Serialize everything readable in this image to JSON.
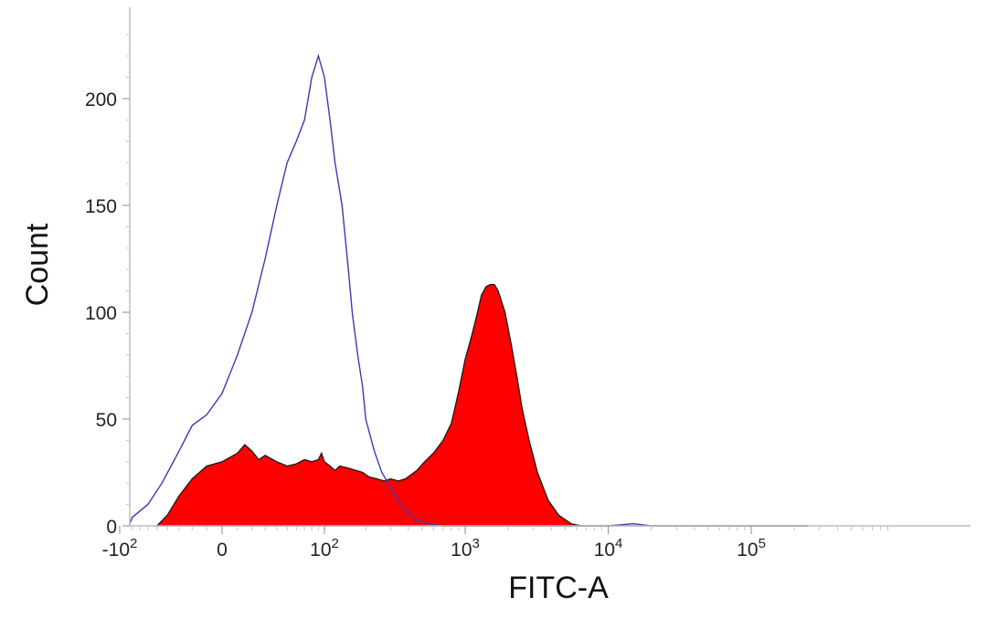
{
  "chart_data": {
    "type": "area",
    "xlabel": "FITC-A",
    "ylabel": "Count",
    "x_scale": "biexponential",
    "ylim": [
      0,
      235
    ],
    "x_ticks": [
      {
        "value": -100,
        "base": "-10",
        "exp": "2"
      },
      {
        "value": 0,
        "label": "0"
      },
      {
        "value": 100,
        "base": "10",
        "exp": "2"
      },
      {
        "value": 1000,
        "base": "10",
        "exp": "3"
      },
      {
        "value": 10000,
        "base": "10",
        "exp": "4"
      },
      {
        "value": 100000,
        "base": "10",
        "exp": "5"
      }
    ],
    "y_ticks": [
      0,
      50,
      100,
      150,
      200
    ],
    "grid": false,
    "series": [
      {
        "style": "outline",
        "color": "#3b3bb0",
        "points": [
          [
            -150,
            0
          ],
          [
            -110,
            1
          ],
          [
            -80,
            4
          ],
          [
            -60,
            10
          ],
          [
            -45,
            20
          ],
          [
            -30,
            35
          ],
          [
            -20,
            47
          ],
          [
            -10,
            52
          ],
          [
            0,
            62
          ],
          [
            10,
            80
          ],
          [
            20,
            100
          ],
          [
            30,
            125
          ],
          [
            40,
            150
          ],
          [
            50,
            170
          ],
          [
            60,
            180
          ],
          [
            70,
            190
          ],
          [
            80,
            210
          ],
          [
            90,
            220
          ],
          [
            100,
            210
          ],
          [
            110,
            190
          ],
          [
            120,
            170
          ],
          [
            135,
            150
          ],
          [
            150,
            120
          ],
          [
            160,
            100
          ],
          [
            175,
            80
          ],
          [
            190,
            65
          ],
          [
            200,
            50
          ],
          [
            230,
            35
          ],
          [
            260,
            25
          ],
          [
            300,
            18
          ],
          [
            350,
            10
          ],
          [
            400,
            6
          ],
          [
            450,
            3
          ],
          [
            550,
            1
          ],
          [
            700,
            0
          ],
          [
            1000,
            0
          ],
          [
            10000,
            0
          ],
          [
            15000,
            1
          ],
          [
            20000,
            0
          ],
          [
            250000,
            0
          ]
        ]
      },
      {
        "style": "filled",
        "color": "#ff0000",
        "points": [
          [
            -50,
            0
          ],
          [
            -40,
            5
          ],
          [
            -30,
            14
          ],
          [
            -20,
            22
          ],
          [
            -10,
            28
          ],
          [
            0,
            30
          ],
          [
            10,
            34
          ],
          [
            15,
            38
          ],
          [
            20,
            35
          ],
          [
            25,
            31
          ],
          [
            30,
            33
          ],
          [
            40,
            30
          ],
          [
            50,
            28
          ],
          [
            60,
            29
          ],
          [
            70,
            31
          ],
          [
            80,
            30
          ],
          [
            90,
            31
          ],
          [
            95,
            34
          ],
          [
            100,
            30
          ],
          [
            110,
            28
          ],
          [
            120,
            26
          ],
          [
            130,
            28
          ],
          [
            150,
            27
          ],
          [
            170,
            26
          ],
          [
            190,
            25
          ],
          [
            210,
            23
          ],
          [
            240,
            22
          ],
          [
            270,
            21
          ],
          [
            300,
            22
          ],
          [
            340,
            21
          ],
          [
            380,
            22
          ],
          [
            420,
            24
          ],
          [
            460,
            26
          ],
          [
            520,
            30
          ],
          [
            600,
            34
          ],
          [
            700,
            40
          ],
          [
            800,
            48
          ],
          [
            900,
            63
          ],
          [
            1000,
            78
          ],
          [
            1100,
            88
          ],
          [
            1200,
            98
          ],
          [
            1300,
            108
          ],
          [
            1400,
            112
          ],
          [
            1500,
            113
          ],
          [
            1600,
            113
          ],
          [
            1700,
            110
          ],
          [
            1900,
            100
          ],
          [
            2100,
            85
          ],
          [
            2300,
            70
          ],
          [
            2500,
            55
          ],
          [
            2800,
            40
          ],
          [
            3200,
            25
          ],
          [
            3800,
            12
          ],
          [
            4500,
            5
          ],
          [
            5500,
            1
          ],
          [
            6500,
            0
          ],
          [
            250000,
            0
          ]
        ]
      }
    ]
  }
}
